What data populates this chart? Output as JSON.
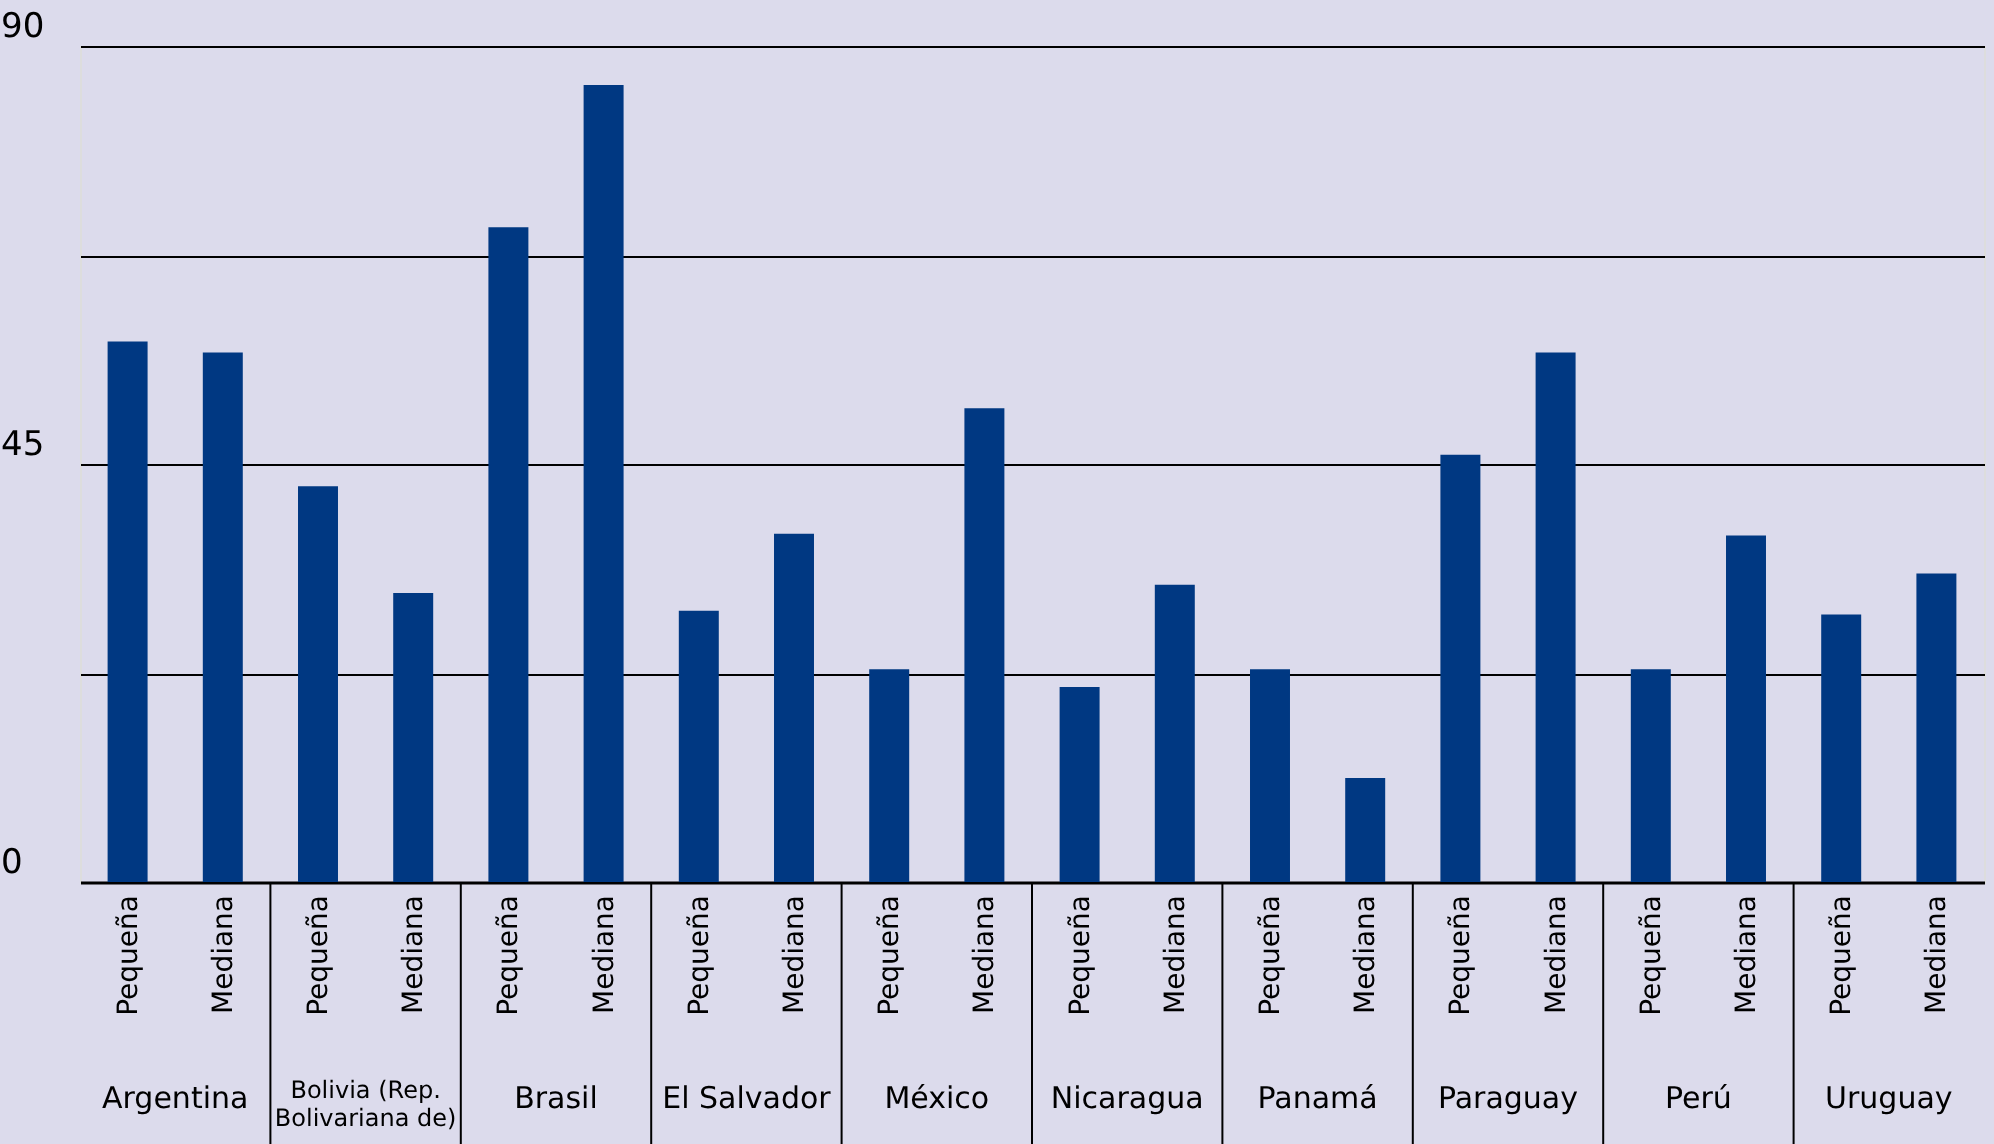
{
  "chart_data": {
    "type": "bar",
    "categories": [
      "Pequeña",
      "Mediana",
      "Pequeña",
      "Mediana",
      "Pequeña",
      "Mediana",
      "Pequeña",
      "Mediana",
      "Pequeña",
      "Mediana",
      "Pequeña",
      "Mediana",
      "Pequeña",
      "Mediana",
      "Pequeña",
      "Mediana",
      "Pequeña",
      "Mediana",
      "Pequeña",
      "Mediana"
    ],
    "values": [
      58.2,
      57.0,
      42.6,
      31.1,
      70.5,
      85.8,
      29.2,
      37.5,
      22.9,
      51.0,
      21.0,
      32.0,
      22.9,
      11.2,
      46.0,
      57.0,
      22.9,
      37.3,
      28.8,
      33.2
    ],
    "color": "#003882",
    "ylim": [
      0,
      90
    ],
    "yticks": [
      0,
      {
        "value": 22.5,
        "label": null
      },
      45,
      {
        "value": 67.5,
        "label": null
      },
      90
    ],
    "grid": "y",
    "annotations": [
      "Argentina",
      "Bolivia (Rep.\nBolivariana de)",
      "Brasil",
      "El Salvador",
      "México",
      "Nicaragua",
      "Panamá",
      "Paraguay",
      "Perú",
      "Uruguay"
    ]
  }
}
